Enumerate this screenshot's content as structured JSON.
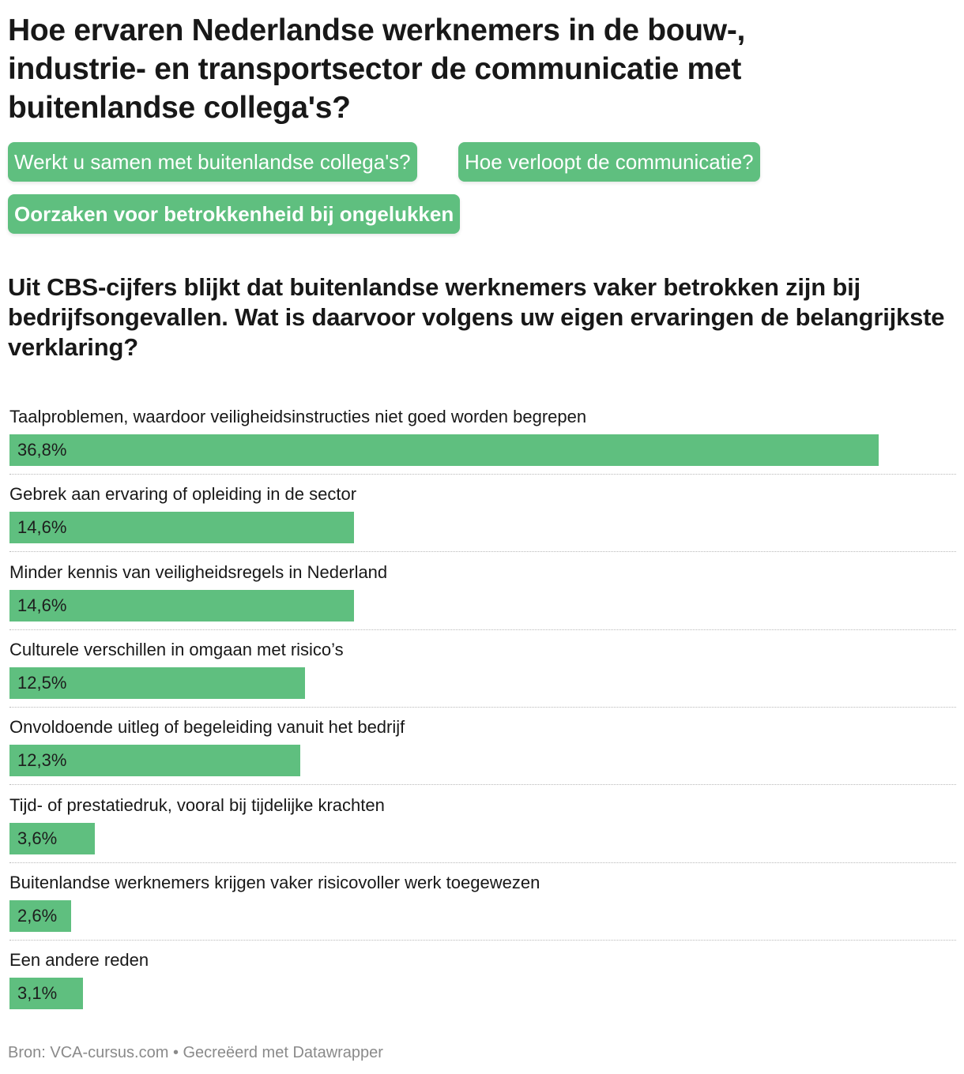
{
  "title": "Hoe ervaren Nederlandse werknemers in de bouw-, industrie- en transportsector de communicatie met buitenlandse collega's?",
  "tabs": [
    {
      "label": "Werkt u samen met buitenlandse collega's?",
      "active": false
    },
    {
      "label": "Hoe verloopt de communicatie?",
      "active": false
    },
    {
      "label": "Oorzaken voor betrokkenheid bij ongelukken",
      "active": true
    }
  ],
  "colors": {
    "bar": "#5fbf7f",
    "tab": "#5fbf7f"
  },
  "chart_data": {
    "type": "bar",
    "orientation": "horizontal",
    "title": "Uit CBS-cijfers blijkt dat buitenlandse werknemers vaker betrokken zijn bij bedrijfsongevallen. Wat is daarvoor volgens uw eigen ervaringen de belangrijkste verklaring?",
    "categories": [
      "Taalproblemen, waardoor veiligheidsinstructies niet goed worden begrepen",
      "Gebrek aan ervaring of opleiding in de sector",
      "Minder kennis van veiligheidsregels in Nederland",
      "Culturele verschillen in omgaan met risico’s",
      "Onvoldoende uitleg of begeleiding vanuit het bedrijf",
      "Tijd- of prestatiedruk, vooral bij tijdelijke krachten",
      "Buitenlandse werknemers krijgen vaker risicovoller werk toegewezen",
      "Een andere reden"
    ],
    "values": [
      36.8,
      14.6,
      14.6,
      12.5,
      12.3,
      3.6,
      2.6,
      3.1
    ],
    "value_labels": [
      "36,8%",
      "14,6%",
      "14,6%",
      "12,5%",
      "12,3%",
      "3,6%",
      "2,6%",
      "3,1%"
    ],
    "unit": "%"
  },
  "footer": "Bron: VCA-cursus.com • Gecreëerd met Datawrapper"
}
